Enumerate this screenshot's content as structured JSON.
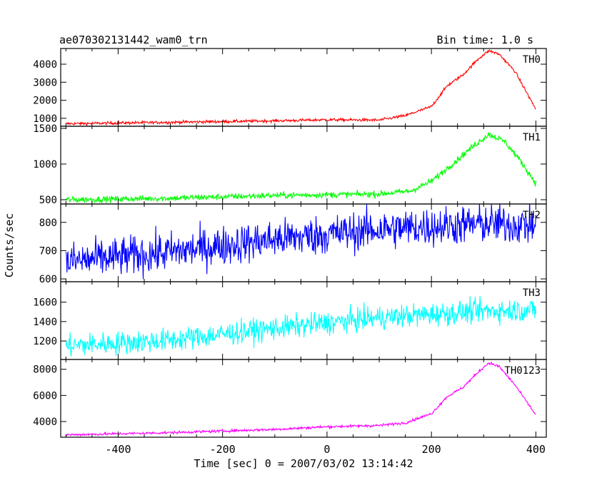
{
  "header": {
    "title": "ae070302131442_wam0_trn",
    "bin_time": "Bin time: 1.0 s"
  },
  "axes": {
    "ylabel": "Counts/sec",
    "xlabel": "Time [sec] 0 = 2007/03/02 13:14:42"
  },
  "chart_data": {
    "type": "line",
    "title": "ae070302131442_wam0_trn",
    "xlabel": "Time [sec] 0 = 2007/03/02 13:14:42",
    "ylabel": "Counts/sec",
    "xlim": [
      -510,
      420
    ],
    "xticks": [
      -400,
      -200,
      0,
      200,
      400
    ],
    "grid": false,
    "series": [
      {
        "name": "TH0",
        "color": "#ff0000",
        "ylim": [
          560,
          4870
        ],
        "yticks": [
          1000,
          2000,
          3000,
          4000
        ],
        "noise": 40,
        "trend_x": [
          -500,
          -300,
          -100,
          0,
          100,
          150,
          200,
          230,
          260,
          290,
          310,
          330,
          360,
          400
        ],
        "trend_y": [
          700,
          780,
          860,
          920,
          900,
          1150,
          1650,
          2800,
          3400,
          4300,
          4750,
          4550,
          3600,
          1500
        ]
      },
      {
        "name": "TH1",
        "color": "#00ff00",
        "ylim": [
          440,
          1530
        ],
        "yticks": [
          500,
          1000,
          1500
        ],
        "noise": 22,
        "trend_x": [
          -500,
          -300,
          -100,
          100,
          160,
          200,
          240,
          280,
          310,
          340,
          370,
          400
        ],
        "trend_y": [
          500,
          520,
          560,
          580,
          620,
          760,
          1000,
          1250,
          1420,
          1320,
          1050,
          730
        ]
      },
      {
        "name": "TH2",
        "color": "#0000ff",
        "ylim": [
          590,
          865
        ],
        "yticks": [
          600,
          700,
          800
        ],
        "noise": 35,
        "trend_x": [
          -500,
          -300,
          -100,
          100,
          300,
          400
        ],
        "trend_y": [
          660,
          695,
          740,
          775,
          795,
          790
        ]
      },
      {
        "name": "TH3",
        "color": "#00ffff",
        "ylim": [
          1010,
          1810
        ],
        "yticks": [
          1200,
          1400,
          1600
        ],
        "noise": 60,
        "trend_x": [
          -500,
          -300,
          -100,
          100,
          300,
          400
        ],
        "trend_y": [
          1150,
          1210,
          1330,
          1440,
          1510,
          1520
        ]
      },
      {
        "name": "TH0123",
        "color": "#ff00ff",
        "ylim": [
          2800,
          8750
        ],
        "yticks": [
          4000,
          6000,
          8000
        ],
        "noise": 50,
        "trend_x": [
          -500,
          -300,
          -100,
          0,
          100,
          150,
          200,
          230,
          260,
          290,
          310,
          330,
          360,
          400
        ],
        "trend_y": [
          2980,
          3150,
          3400,
          3600,
          3700,
          3900,
          4600,
          5900,
          6600,
          7800,
          8500,
          8200,
          6800,
          4500
        ]
      }
    ]
  }
}
